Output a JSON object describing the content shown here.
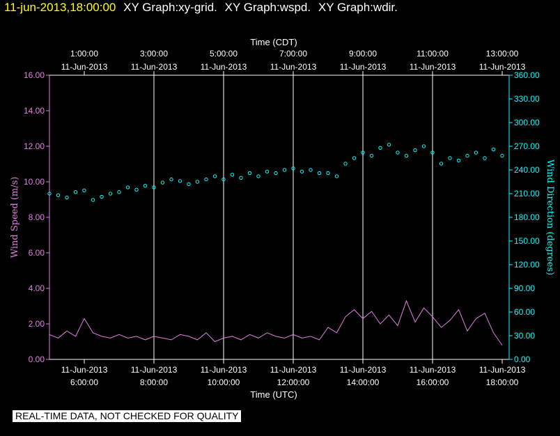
{
  "header": {
    "timestamp": "11-jun-2013,18:00:00",
    "graph_titles": [
      "XY Graph:xy-grid.",
      "XY Graph:wspd.",
      "XY Graph:wdir."
    ]
  },
  "disclaimer": "REAL-TIME DATA, NOT CHECKED FOR QUALITY",
  "colors": {
    "wind_speed": "#e080e0",
    "wind_direction": "#00ffff",
    "axis": "#ffffff",
    "background": "#000000",
    "header_timestamp": "#ffff00"
  },
  "chart_data": {
    "type": "line",
    "xlabel_top": "Time (CDT)",
    "xlabel_bottom": "Time (UTC)",
    "ylabel_left": "Wind Speed (m/s)",
    "ylabel_right": "Wind Direction (degrees)",
    "x_range_utc_hours": [
      5.0,
      18.2
    ],
    "bottom_ticks": [
      {
        "hour": 6,
        "date": "11-Jun-2013",
        "time": "6:00:00"
      },
      {
        "hour": 8,
        "date": "11-Jun-2013",
        "time": "8:00:00"
      },
      {
        "hour": 10,
        "date": "11-Jun-2013",
        "time": "10:00:00"
      },
      {
        "hour": 12,
        "date": "11-Jun-2013",
        "time": "12:00:00"
      },
      {
        "hour": 14,
        "date": "11-Jun-2013",
        "time": "14:00:00"
      },
      {
        "hour": 16,
        "date": "11-Jun-2013",
        "time": "16:00:00"
      },
      {
        "hour": 18,
        "date": "11-Jun-2013",
        "time": "18:00:00"
      }
    ],
    "top_ticks": [
      {
        "hour": 6,
        "time": "1:00:00",
        "date": "11-Jun-2013"
      },
      {
        "hour": 8,
        "time": "3:00:00",
        "date": "11-Jun-2013"
      },
      {
        "hour": 10,
        "time": "5:00:00",
        "date": "11-Jun-2013"
      },
      {
        "hour": 12,
        "time": "7:00:00",
        "date": "11-Jun-2013"
      },
      {
        "hour": 14,
        "time": "9:00:00",
        "date": "11-Jun-2013"
      },
      {
        "hour": 16,
        "time": "11:00:00",
        "date": "11-Jun-2013"
      },
      {
        "hour": 18,
        "time": "13:00:00",
        "date": "11-Jun-2013"
      }
    ],
    "y_left": {
      "range": [
        0,
        16
      ],
      "ticks": [
        "0.00",
        "2.00",
        "4.00",
        "6.00",
        "8.00",
        "10.00",
        "12.00",
        "14.00",
        "16.00"
      ]
    },
    "y_right": {
      "range": [
        0,
        360
      ],
      "ticks": [
        "0.00",
        "30.00",
        "60.00",
        "90.00",
        "120.00",
        "150.00",
        "180.00",
        "210.00",
        "240.00",
        "270.00",
        "300.00",
        "330.00",
        "360.00"
      ]
    },
    "vertical_grid_hours": [
      8,
      10,
      12,
      14,
      16
    ],
    "series": [
      {
        "name": "Wind Speed (m/s)",
        "axis": "left",
        "style": "line",
        "x": [
          5.0,
          5.25,
          5.5,
          5.75,
          6.0,
          6.25,
          6.5,
          6.75,
          7.0,
          7.25,
          7.5,
          7.75,
          8.0,
          8.25,
          8.5,
          8.75,
          9.0,
          9.25,
          9.5,
          9.75,
          10.0,
          10.25,
          10.5,
          10.75,
          11.0,
          11.25,
          11.5,
          11.75,
          12.0,
          12.25,
          12.5,
          12.75,
          13.0,
          13.25,
          13.5,
          13.75,
          14.0,
          14.25,
          14.5,
          14.75,
          15.0,
          15.25,
          15.5,
          15.75,
          16.0,
          16.25,
          16.5,
          16.75,
          17.0,
          17.25,
          17.5,
          17.75,
          18.0
        ],
        "values": [
          1.4,
          1.2,
          1.6,
          1.3,
          2.3,
          1.5,
          1.3,
          1.2,
          1.4,
          1.2,
          1.3,
          1.1,
          1.3,
          1.2,
          1.1,
          1.4,
          1.3,
          1.1,
          1.5,
          1.0,
          1.2,
          1.3,
          1.1,
          1.4,
          1.2,
          1.5,
          1.3,
          1.2,
          1.4,
          1.2,
          1.3,
          1.1,
          1.8,
          1.5,
          2.4,
          2.8,
          2.3,
          2.7,
          2.0,
          2.5,
          1.9,
          3.3,
          2.1,
          2.9,
          2.4,
          1.8,
          2.2,
          2.8,
          1.6,
          2.3,
          2.6,
          1.5,
          0.8
        ]
      },
      {
        "name": "Wind Direction (degrees)",
        "axis": "right",
        "style": "points",
        "x": [
          5.0,
          5.25,
          5.5,
          5.75,
          6.0,
          6.25,
          6.5,
          6.75,
          7.0,
          7.25,
          7.5,
          7.75,
          8.0,
          8.25,
          8.5,
          8.75,
          9.0,
          9.25,
          9.5,
          9.75,
          10.0,
          10.25,
          10.5,
          10.75,
          11.0,
          11.25,
          11.5,
          11.75,
          12.0,
          12.25,
          12.5,
          12.75,
          13.0,
          13.25,
          13.5,
          13.75,
          14.0,
          14.25,
          14.5,
          14.75,
          15.0,
          15.25,
          15.5,
          15.75,
          16.0,
          16.25,
          16.5,
          16.75,
          17.0,
          17.25,
          17.5,
          17.75,
          18.0
        ],
        "values": [
          210,
          208,
          205,
          212,
          214,
          202,
          206,
          210,
          212,
          218,
          215,
          220,
          218,
          224,
          228,
          226,
          222,
          225,
          228,
          232,
          228,
          234,
          230,
          236,
          232,
          238,
          236,
          240,
          242,
          238,
          240,
          236,
          236,
          232,
          248,
          255,
          262,
          258,
          268,
          272,
          262,
          258,
          265,
          270,
          262,
          248,
          255,
          252,
          258,
          262,
          255,
          266,
          258
        ]
      }
    ]
  }
}
